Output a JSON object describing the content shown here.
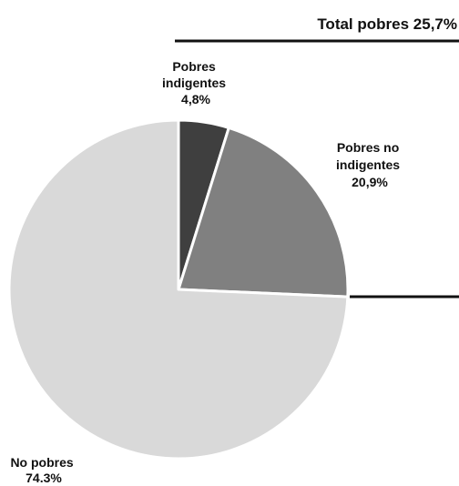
{
  "chart_data": {
    "type": "pie",
    "annotation": "Total pobres 25,7%",
    "slices": [
      {
        "name": "Pobres indigentes",
        "name_lines": [
          "Pobres",
          "indigentes"
        ],
        "value": 4.8,
        "value_label": "4,8%",
        "color": "#3f3f3f"
      },
      {
        "name": "Pobres no indigentes",
        "name_lines": [
          "Pobres no",
          "indigentes"
        ],
        "value": 20.9,
        "value_label": "20,9%",
        "color": "#808080"
      },
      {
        "name": "No pobres",
        "name_lines": [
          "No pobres"
        ],
        "value": 74.3,
        "value_label": "74.3%",
        "color": "#d9d9d9"
      }
    ],
    "slice_border_color": "#ffffff"
  }
}
